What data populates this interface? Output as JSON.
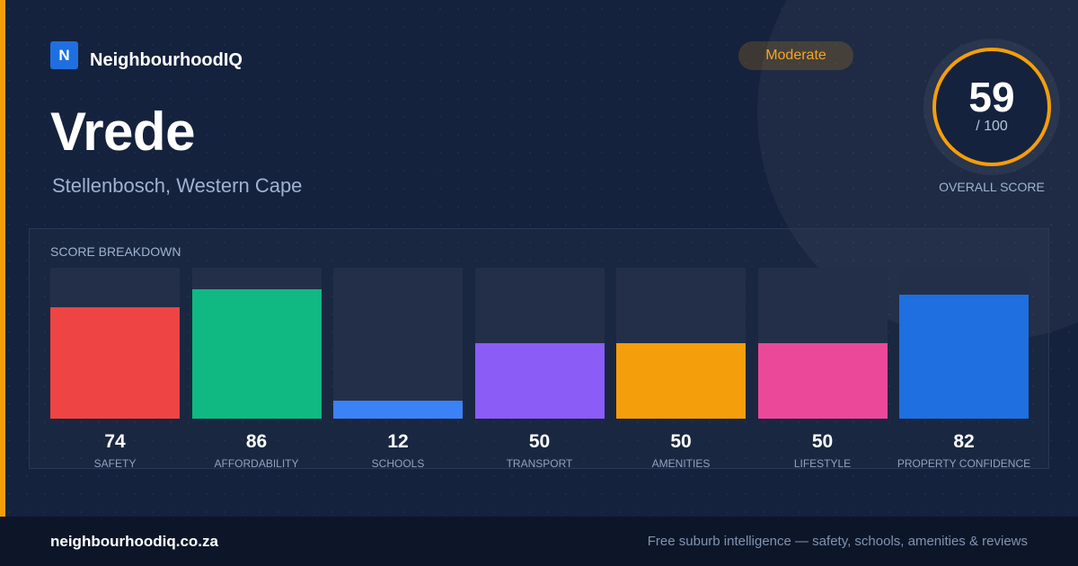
{
  "brand": {
    "logo_letter": "N",
    "name": "NeighbourhoodIQ"
  },
  "suburb": {
    "name": "Vrede",
    "location": "Stellenbosch, Western Cape"
  },
  "badge": {
    "label": "Moderate",
    "color": "#f5a623"
  },
  "overall": {
    "score": "59",
    "max": "/ 100",
    "label": "OVERALL SCORE",
    "ring_color": "#f59e0b"
  },
  "breakdown": {
    "title": "SCORE BREAKDOWN",
    "max": 100,
    "items": [
      {
        "label": "SAFETY",
        "value": 74,
        "color": "#ef4444"
      },
      {
        "label": "AFFORDABILITY",
        "value": 86,
        "color": "#10b981"
      },
      {
        "label": "SCHOOLS",
        "value": 12,
        "color": "#3b82f6"
      },
      {
        "label": "TRANSPORT",
        "value": 50,
        "color": "#8b5cf6"
      },
      {
        "label": "AMENITIES",
        "value": 50,
        "color": "#f59e0b"
      },
      {
        "label": "LIFESTYLE",
        "value": 50,
        "color": "#ec4899"
      },
      {
        "label": "PROPERTY CONFIDENCE",
        "value": 82,
        "color": "#1f6fe0"
      }
    ]
  },
  "footer": {
    "url": "neighbourhoodiq.co.za",
    "tagline": "Free suburb intelligence — safety, schools, amenities & reviews"
  }
}
